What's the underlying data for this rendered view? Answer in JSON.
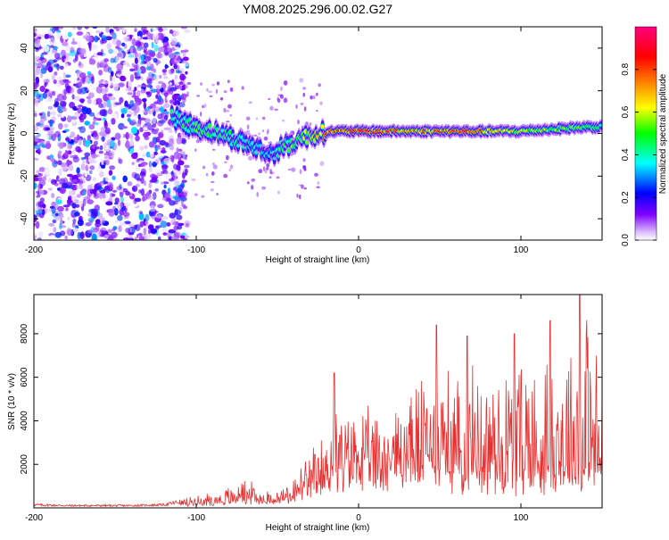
{
  "title": "YM08.2025.296.00.02.G27",
  "chart_data": [
    {
      "type": "heatmap",
      "title": "YM08.2025.296.00.02.G27",
      "xlabel": "Height of straight line (km)",
      "ylabel": "Frequency (Hz)",
      "xlim": [
        -200,
        150
      ],
      "ylim": [
        -50,
        50
      ],
      "xticks": [
        -200,
        -100,
        0,
        100
      ],
      "yticks": [
        -40,
        -20,
        0,
        20,
        40
      ],
      "colorbar": {
        "label": "Normalized spectral amplitude",
        "range": [
          0,
          1
        ],
        "ticks": [
          0.0,
          0.2,
          0.4,
          0.6,
          0.8
        ],
        "tick_labels": [
          "0.0",
          "0.2",
          "0.4",
          "0.6",
          "0.8"
        ],
        "colors": [
          "#ffffff",
          "#8000ff",
          "#0000ff",
          "#00ffff",
          "#00ff00",
          "#ffff00",
          "#ff8000",
          "#ff0000",
          "#ff0080"
        ]
      },
      "ridge": {
        "x": [
          -115,
          -105,
          -95,
          -85,
          -75,
          -65,
          -55,
          -45,
          -35,
          -25,
          -15,
          0,
          20,
          40,
          60,
          80,
          100,
          120,
          140,
          150
        ],
        "y": [
          8,
          4,
          2,
          0,
          -3,
          -6,
          -10,
          -6,
          -2,
          0,
          1,
          1,
          1,
          1,
          1,
          1,
          1,
          2,
          3,
          3
        ],
        "peak_amplitude": [
          0.45,
          0.5,
          0.55,
          0.5,
          0.45,
          0.4,
          0.4,
          0.5,
          0.6,
          0.75,
          0.85,
          0.9,
          0.85,
          0.8,
          0.9,
          0.75,
          0.65,
          0.6,
          0.55,
          0.5
        ]
      },
      "noise_region": {
        "x_range": [
          -200,
          -110
        ],
        "amplitude": 0.35
      }
    },
    {
      "type": "line",
      "xlabel": "Height of straight line (km)",
      "ylabel": "SNR (10 * v/v)",
      "xlim": [
        -200,
        150
      ],
      "ylim": [
        0,
        9800
      ],
      "xticks": [
        -200,
        -100,
        0,
        100
      ],
      "yticks": [
        2000,
        4000,
        6000,
        8000
      ],
      "color": "#e83030",
      "series": [
        {
          "name": "SNR",
          "x": [
            -200,
            -180,
            -160,
            -140,
            -120,
            -110,
            -100,
            -90,
            -80,
            -70,
            -60,
            -50,
            -40,
            -30,
            -20,
            -15,
            -10,
            0,
            10,
            20,
            30,
            40,
            50,
            60,
            70,
            80,
            90,
            100,
            110,
            120,
            130,
            140,
            150
          ],
          "envelope": [
            200,
            150,
            150,
            150,
            200,
            400,
            600,
            700,
            1000,
            1400,
            900,
            800,
            1500,
            2500,
            3500,
            5800,
            4000,
            4500,
            4200,
            4800,
            5500,
            6500,
            7200,
            6000,
            6500,
            6800,
            7000,
            7500,
            7200,
            8000,
            8300,
            9800,
            6500
          ],
          "baseline": [
            80,
            60,
            60,
            60,
            80,
            150,
            200,
            250,
            300,
            500,
            300,
            300,
            600,
            900,
            1500,
            2000,
            1800,
            2500,
            2000,
            2200,
            2000,
            2000,
            2000,
            2000,
            1800,
            1800,
            1500,
            1500,
            1500,
            1500,
            1500,
            1200,
            1500
          ],
          "notable_peaks": [
            [
              -15,
              6200
            ],
            [
              48,
              8400
            ],
            [
              67,
              7900
            ],
            [
              96,
              8000
            ],
            [
              118,
              8600
            ],
            [
              136,
              9800
            ]
          ]
        }
      ]
    }
  ]
}
